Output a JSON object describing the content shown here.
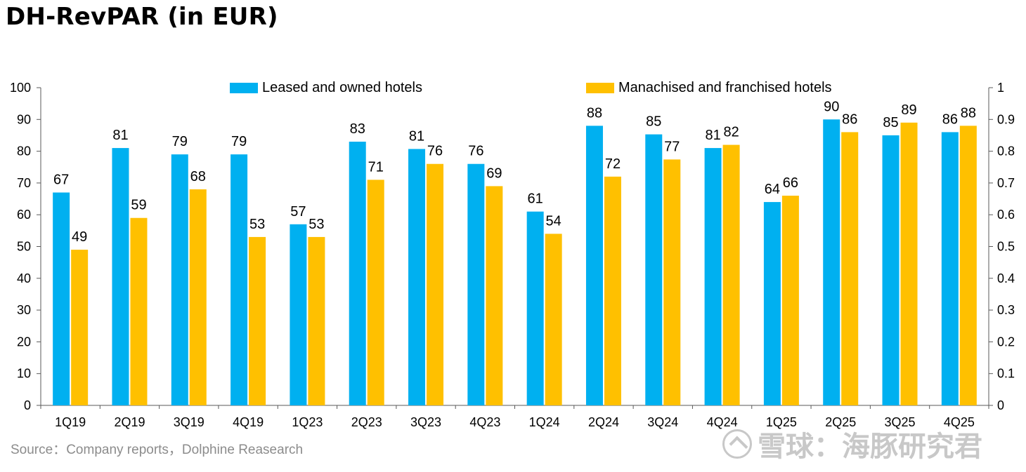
{
  "title": "DH-RevPAR (in EUR)",
  "source": "Source：Company reports，Dolphine Reasearch",
  "brand": {
    "icon": "dolphin-logo-icon",
    "text": "雪球：海豚研究君"
  },
  "colors": {
    "leased": "#00b0f0",
    "managed": "#ffc000",
    "axis": "#595959",
    "watermark": "#ededed"
  },
  "chart_data": {
    "type": "bar",
    "categories": [
      "1Q19",
      "2Q19",
      "3Q19",
      "4Q19",
      "1Q23",
      "2Q23",
      "3Q23",
      "4Q23",
      "1Q24",
      "2Q24",
      "3Q24",
      "4Q24",
      "1Q25",
      "2Q25",
      "3Q25",
      "4Q25"
    ],
    "series": [
      {
        "name": "Leased and owned hotels",
        "values": [
          67,
          81,
          79,
          79,
          57,
          83,
          80.7,
          76,
          61,
          88,
          85.3,
          81,
          64,
          90,
          85,
          86
        ],
        "labels": [
          "67",
          "81",
          "79",
          "79",
          "57",
          "83",
          "81",
          "76",
          "61",
          "88",
          "85",
          "81",
          "64",
          "90",
          "85",
          "86"
        ]
      },
      {
        "name": "Manachised and franchised hotels",
        "values": [
          49,
          59,
          68,
          53,
          53,
          71,
          76,
          69,
          54,
          72,
          77.4,
          82,
          66,
          86,
          89,
          88
        ],
        "labels": [
          "49",
          "59",
          "68",
          "53",
          "53",
          "71",
          "76",
          "69",
          "54",
          "72",
          "77",
          "82",
          "66",
          "86",
          "89",
          "88"
        ]
      }
    ],
    "y_left": {
      "min": 0,
      "max": 100,
      "ticks": [
        "0",
        "10",
        "20",
        "30",
        "40",
        "50",
        "60",
        "70",
        "80",
        "90",
        "100"
      ]
    },
    "y_right": {
      "min": 0,
      "max": 1,
      "ticks": [
        "0",
        "0.1",
        "0.2",
        "0.3",
        "0.4",
        "0.5",
        "0.6",
        "0.7",
        "0.8",
        "0.9",
        "1"
      ]
    },
    "legend_position": "top",
    "grid": false
  }
}
